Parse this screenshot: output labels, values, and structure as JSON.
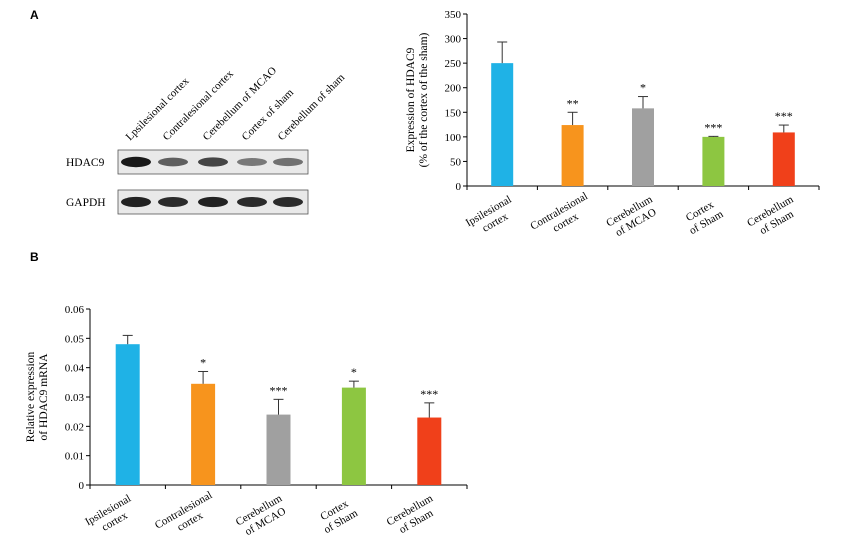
{
  "panel_a_label": "A",
  "panel_b_label": "B",
  "blot": {
    "lane_labels": [
      "Lpsilesional cortex",
      "Contralesional cortex",
      "Cerebellum of MCAO",
      "Cortex of sham",
      "Cerebellum of sham"
    ],
    "rows": [
      {
        "label": "HDAC9",
        "intensities": [
          1.0,
          0.6,
          0.75,
          0.45,
          0.5
        ]
      },
      {
        "label": "GAPDH",
        "intensities": [
          0.95,
          0.9,
          0.95,
          0.9,
          0.9
        ]
      }
    ]
  },
  "chart_data": [
    {
      "type": "bar",
      "categories": [
        [
          "Ipsilesional",
          "cortex"
        ],
        [
          "Contralesional",
          "cortex"
        ],
        [
          "Cerebellum",
          "of MCAO"
        ],
        [
          "Cortex",
          "of Sham"
        ],
        [
          "Cerebellum",
          "of Sham"
        ]
      ],
      "values": [
        250,
        124,
        158,
        100,
        109
      ],
      "errors": [
        43,
        26,
        24,
        1,
        15
      ],
      "significance": [
        "",
        "**",
        "*",
        "***",
        "***"
      ],
      "colors": [
        "#1fb2e6",
        "#f7941d",
        "#a0a0a0",
        "#8dc641",
        "#f0401a"
      ],
      "ylabel": [
        "Expression of HDAC9",
        "(% of the cortex of the sham)"
      ],
      "ylim": [
        0,
        350
      ],
      "yticks": [
        0,
        50,
        100,
        150,
        200,
        250,
        300,
        350
      ],
      "ytick_labels": [
        "0",
        "50",
        "100",
        "150",
        "200",
        "250",
        "300",
        "350"
      ]
    },
    {
      "type": "bar",
      "categories": [
        [
          "Ipsilesional",
          "cortex"
        ],
        [
          "Contralesional",
          "cortex"
        ],
        [
          "Cerebellum",
          "of MCAO"
        ],
        [
          "Cortex",
          "of Sham"
        ],
        [
          "Cerebellum",
          "of Sham"
        ]
      ],
      "values": [
        0.048,
        0.0345,
        0.024,
        0.0332,
        0.023
      ],
      "errors": [
        0.003,
        0.0042,
        0.0052,
        0.0022,
        0.005
      ],
      "significance": [
        "",
        "*",
        "***",
        "*",
        "***"
      ],
      "colors": [
        "#1fb2e6",
        "#f7941d",
        "#a0a0a0",
        "#8dc641",
        "#f0401a"
      ],
      "ylabel": [
        "Relative expression",
        "of HDAC9 mRNA"
      ],
      "ylim": [
        0,
        0.06
      ],
      "yticks": [
        0,
        0.01,
        0.02,
        0.03,
        0.04,
        0.05,
        0.06
      ],
      "ytick_labels": [
        "0",
        "0.01",
        "0.02",
        "0.03",
        "0.04",
        "0.05",
        "0.06"
      ]
    }
  ]
}
